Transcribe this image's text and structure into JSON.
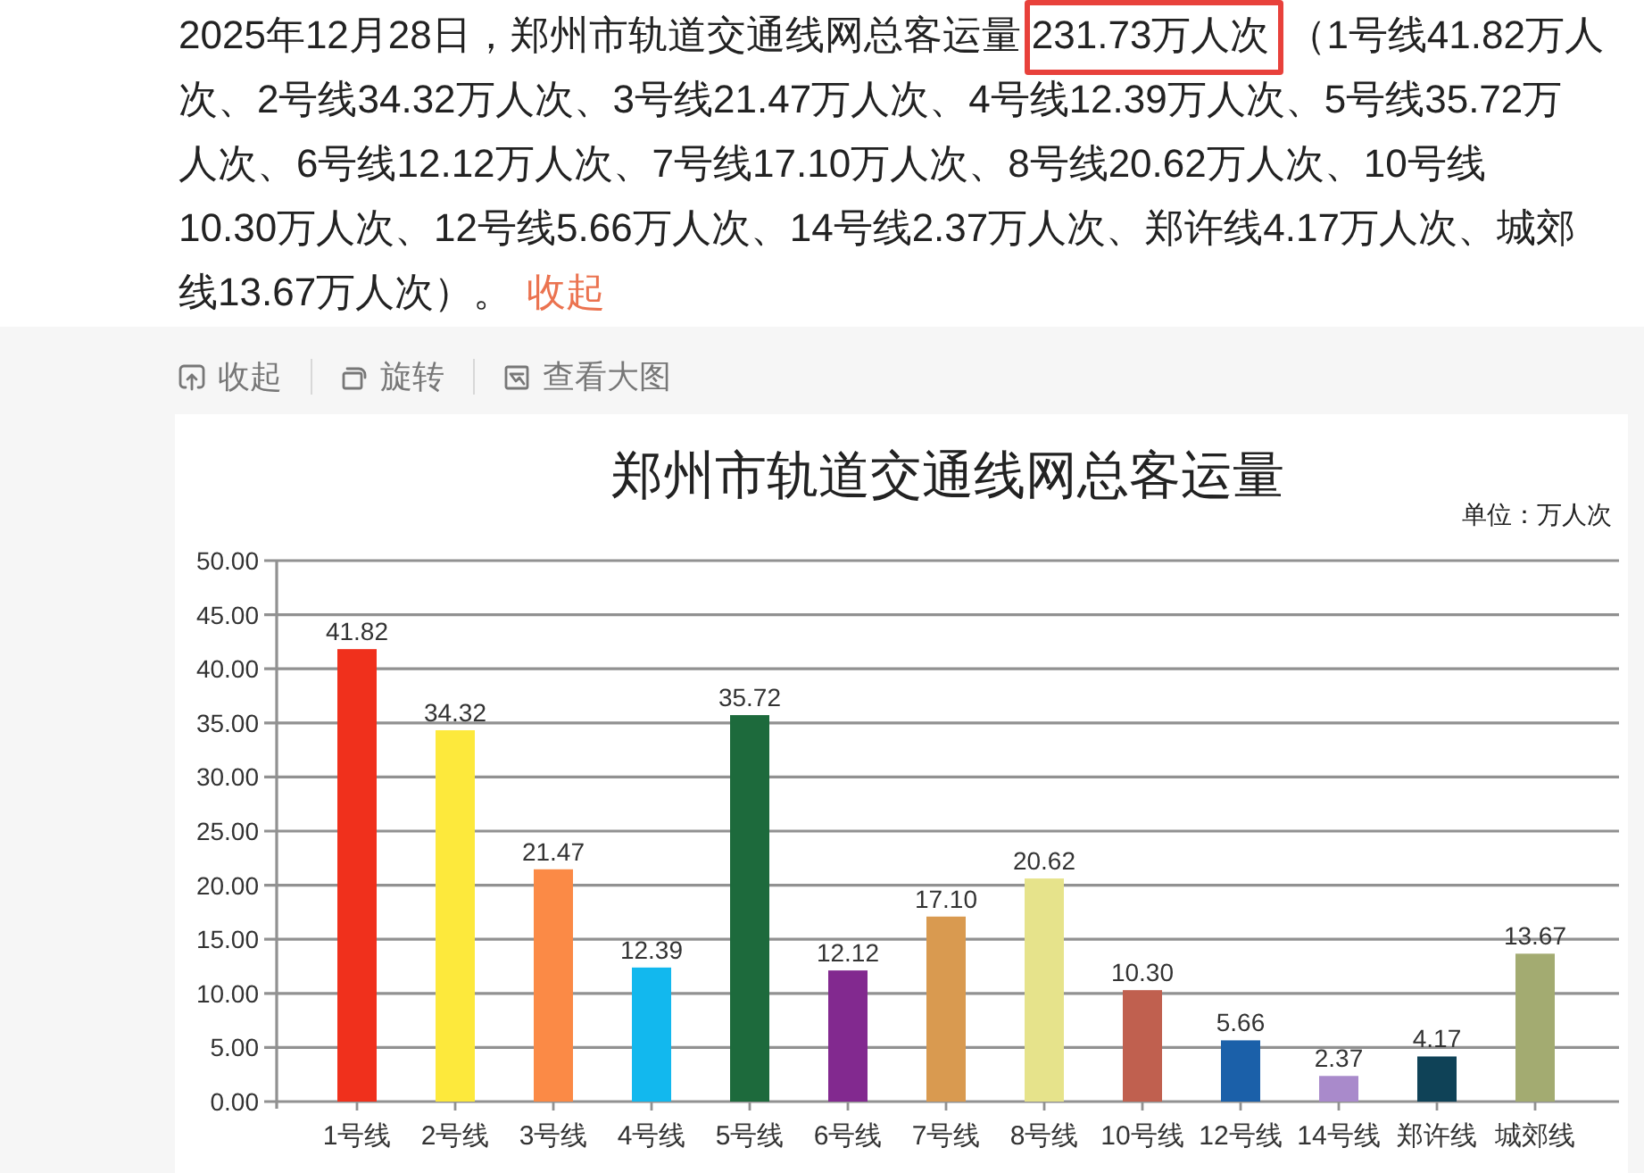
{
  "chart_data": {
    "type": "bar",
    "title": "郑州市轨道交通线网总客运量",
    "categories": [
      "1号线",
      "2号线",
      "3号线",
      "4号线",
      "5号线",
      "6号线",
      "7号线",
      "8号线",
      "10号线",
      "12号线",
      "14号线",
      "郑许线",
      "城郊线"
    ],
    "values": [
      41.82,
      34.32,
      21.47,
      12.39,
      35.72,
      12.12,
      17.1,
      20.62,
      10.3,
      5.66,
      2.37,
      4.17,
      13.67
    ],
    "value_labels": [
      "41.82",
      "34.32",
      "21.47",
      "12.39",
      "35.72",
      "12.12",
      "17.10",
      "20.62",
      "10.30",
      "5.66",
      "2.37",
      "4.17",
      "13.67"
    ],
    "colors": [
      "#f0301c",
      "#fde93c",
      "#fb8a46",
      "#12b8ee",
      "#1d6a3c",
      "#82298f",
      "#d99a50",
      "#e6e38b",
      "#c0604f",
      "#1b60a9",
      "#a98acb",
      "#0f4257",
      "#a3ab71"
    ],
    "ylim": [
      0,
      50
    ],
    "yticks": [
      {
        "value": 0,
        "label": "0.00"
      },
      {
        "value": 5,
        "label": "5.00"
      },
      {
        "value": 10,
        "label": "10.00"
      },
      {
        "value": 15,
        "label": "15.00"
      },
      {
        "value": 20,
        "label": "20.00"
      },
      {
        "value": 25,
        "label": "25.00"
      },
      {
        "value": 30,
        "label": "30.00"
      },
      {
        "value": 35,
        "label": "35.00"
      },
      {
        "value": 40,
        "label": "40.00"
      },
      {
        "value": 45,
        "label": "45.00"
      },
      {
        "value": 50,
        "label": "50.00"
      }
    ],
    "grid": "y",
    "annotations": [
      "2025年12月28日，郑州市轨道交通线网总客运量",
      "231.73万人次",
      "（1号线41.82万人",
      "次、2号线34.32万人次、3号线21.47万人次、4号线12.39万人次、5号线35.72万",
      "人次、6号线12.12万人次、7号线17.10万人次、8号线20.62万人次、10号线",
      "10.30万人次、12号线5.66万人次、14号线2.37万人次、郑许线4.17万人次、城郊",
      "线13.67万人次）。",
      "收起",
      "收起",
      "旋转",
      "查看大图",
      "单位：万人次"
    ]
  }
}
